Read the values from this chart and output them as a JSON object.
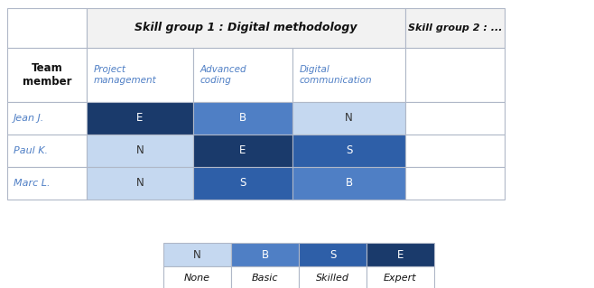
{
  "skill_group1_label": "Skill group 1 : Digital methodology",
  "skill_group2_label": "Skill group 2 : ...",
  "col_header_label": "Team\nmember",
  "skills": [
    "Project\nmanagement",
    "Advanced\ncoding",
    "Digital\ncommunication"
  ],
  "members": [
    "Jean J.",
    "Paul K.",
    "Marc L."
  ],
  "values": [
    [
      "E",
      "B",
      "N"
    ],
    [
      "N",
      "E",
      "S"
    ],
    [
      "N",
      "S",
      "B"
    ]
  ],
  "level_colors": {
    "N": "#c5d8f0",
    "B": "#4f7fc5",
    "S": "#2e5fa8",
    "E": "#1a3a6b"
  },
  "level_labels": [
    "N",
    "B",
    "S",
    "E"
  ],
  "level_names": [
    "None",
    "Basic",
    "Skilled",
    "Expert"
  ],
  "member_color": "#4f7fc5",
  "skill_color": "#4f7fc5",
  "header_bg": "#e8e8e8",
  "border_color": "#b0b8c8",
  "fig_w": 6.58,
  "fig_h": 3.19,
  "dpi": 100
}
